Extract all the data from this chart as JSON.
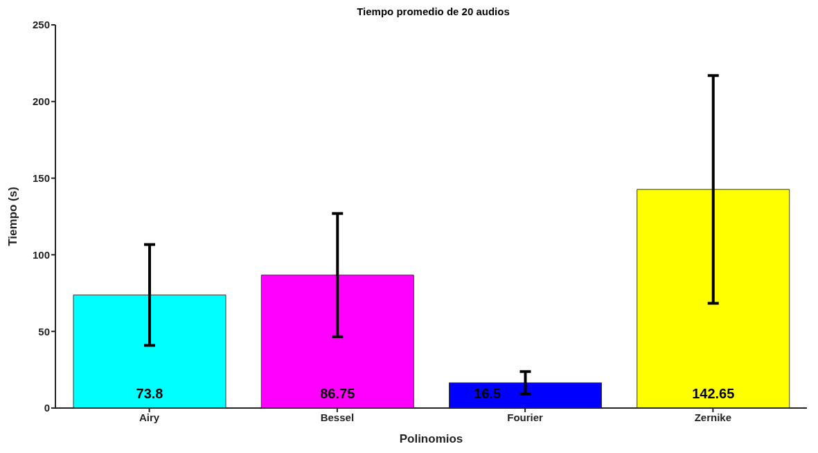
{
  "chart_data": {
    "type": "bar",
    "title": "Tiempo promedio de 20 audios",
    "xlabel": "Polinomios",
    "ylabel": "Tiempo (s)",
    "categories": [
      "Airy",
      "Bessel",
      "Fourier",
      "Zernike"
    ],
    "values": [
      73.8,
      86.75,
      16.5,
      142.65
    ],
    "errors": [
      32.9,
      40.2,
      7.3,
      74.3
    ],
    "colors": [
      "#00ffff",
      "#ff00ff",
      "#0000ff",
      "#ffff00"
    ],
    "ylim": [
      0,
      250
    ],
    "yticks": [
      0,
      50,
      100,
      150,
      200,
      250
    ],
    "data_labels": true
  }
}
